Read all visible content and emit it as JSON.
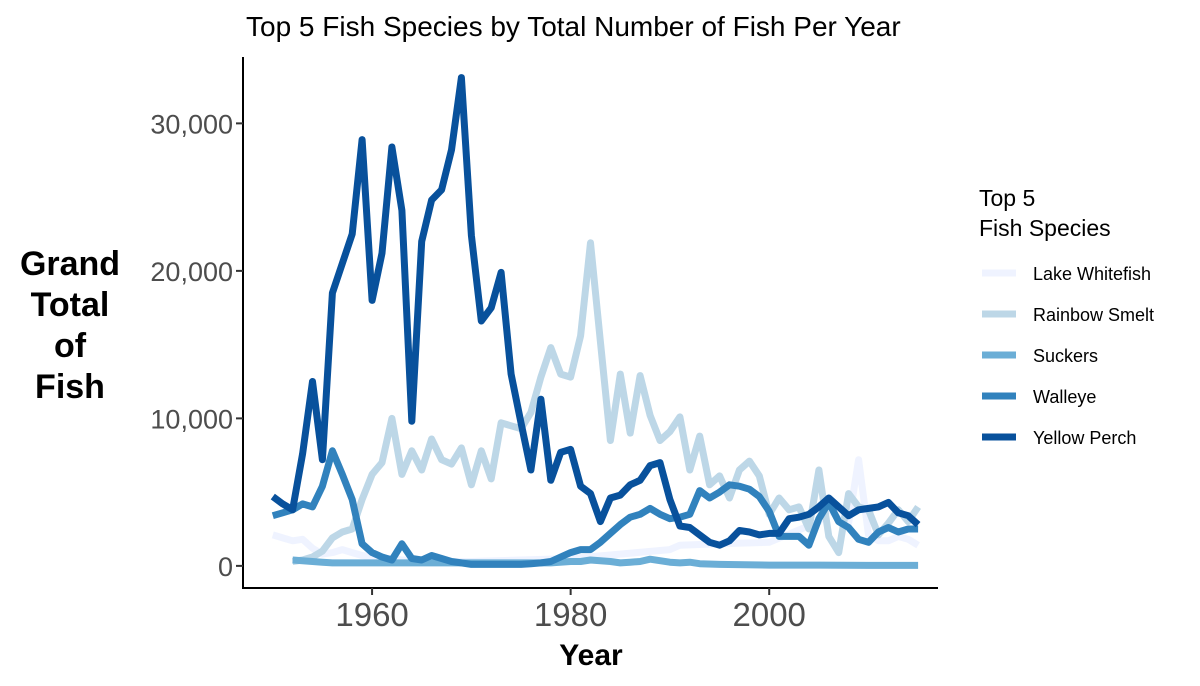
{
  "chart_data": {
    "type": "line",
    "title": "Top 5 Fish Species by Total Number of Fish Per Year",
    "xlabel": "Year",
    "ylabel_lines": [
      "Grand",
      "Total",
      "of",
      "Fish"
    ],
    "xlim": [
      1947,
      2017
    ],
    "ylim": [
      -1500,
      34500
    ],
    "xticks": [
      1960,
      1980,
      2000
    ],
    "xtick_labels": [
      "1960",
      "1980",
      "2000"
    ],
    "yticks": [
      0,
      10000,
      20000,
      30000
    ],
    "ytick_labels": [
      "0",
      "10,000",
      "20,000",
      "30,000"
    ],
    "grid": false,
    "legend": {
      "title_lines": [
        "Top 5",
        "Fish Species"
      ],
      "position": "right"
    },
    "series": [
      {
        "name": "Lake Whitefish",
        "color": "#eff3ff",
        "points": [
          [
            1950,
            2100
          ],
          [
            1951,
            1900
          ],
          [
            1952,
            1700
          ],
          [
            1953,
            1800
          ],
          [
            1954,
            1200
          ],
          [
            1955,
            800
          ],
          [
            1956,
            900
          ],
          [
            1957,
            1100
          ],
          [
            1958,
            900
          ],
          [
            1959,
            700
          ],
          [
            1960,
            600
          ],
          [
            1961,
            500
          ],
          [
            1962,
            500
          ],
          [
            1963,
            400
          ],
          [
            1964,
            400
          ],
          [
            1965,
            300
          ],
          [
            1966,
            300
          ],
          [
            1967,
            300
          ],
          [
            1968,
            300
          ],
          [
            1969,
            300
          ],
          [
            1970,
            300
          ],
          [
            1975,
            400
          ],
          [
            1980,
            500
          ],
          [
            1985,
            800
          ],
          [
            1990,
            1100
          ],
          [
            1991,
            1400
          ],
          [
            1995,
            1500
          ],
          [
            2000,
            1600
          ],
          [
            2005,
            3000
          ],
          [
            2006,
            3900
          ],
          [
            2007,
            3200
          ],
          [
            2008,
            2900
          ],
          [
            2009,
            7200
          ],
          [
            2010,
            2100
          ],
          [
            2011,
            1700
          ],
          [
            2012,
            1700
          ],
          [
            2013,
            2000
          ],
          [
            2014,
            1800
          ],
          [
            2015,
            1400
          ]
        ]
      },
      {
        "name": "Rainbow Smelt",
        "color": "#bdd7e7",
        "points": [
          [
            1952,
            300
          ],
          [
            1953,
            400
          ],
          [
            1954,
            600
          ],
          [
            1955,
            1000
          ],
          [
            1956,
            1900
          ],
          [
            1957,
            2300
          ],
          [
            1958,
            2500
          ],
          [
            1959,
            4500
          ],
          [
            1960,
            6200
          ],
          [
            1961,
            7000
          ],
          [
            1962,
            10000
          ],
          [
            1963,
            6200
          ],
          [
            1964,
            7800
          ],
          [
            1965,
            6500
          ],
          [
            1966,
            8600
          ],
          [
            1967,
            7200
          ],
          [
            1968,
            6900
          ],
          [
            1969,
            8000
          ],
          [
            1970,
            5500
          ],
          [
            1971,
            7800
          ],
          [
            1972,
            5900
          ],
          [
            1973,
            9700
          ],
          [
            1974,
            9500
          ],
          [
            1975,
            9300
          ],
          [
            1976,
            10400
          ],
          [
            1977,
            12800
          ],
          [
            1978,
            14800
          ],
          [
            1979,
            13000
          ],
          [
            1980,
            12800
          ],
          [
            1981,
            15600
          ],
          [
            1982,
            21900
          ],
          [
            1983,
            15200
          ],
          [
            1984,
            8500
          ],
          [
            1985,
            13000
          ],
          [
            1986,
            9000
          ],
          [
            1987,
            12900
          ],
          [
            1988,
            10200
          ],
          [
            1989,
            8500
          ],
          [
            1990,
            9100
          ],
          [
            1991,
            10100
          ],
          [
            1992,
            6500
          ],
          [
            1993,
            8800
          ],
          [
            1994,
            5500
          ],
          [
            1995,
            6100
          ],
          [
            1996,
            4600
          ],
          [
            1997,
            6500
          ],
          [
            1998,
            7100
          ],
          [
            1999,
            6100
          ],
          [
            2000,
            3500
          ],
          [
            2001,
            4600
          ],
          [
            2002,
            3800
          ],
          [
            2003,
            4000
          ],
          [
            2004,
            2500
          ],
          [
            2005,
            6500
          ],
          [
            2006,
            2000
          ],
          [
            2007,
            900
          ],
          [
            2008,
            4900
          ],
          [
            2009,
            4000
          ],
          [
            2010,
            3800
          ],
          [
            2011,
            2100
          ],
          [
            2012,
            2900
          ],
          [
            2013,
            3800
          ],
          [
            2014,
            3000
          ],
          [
            2015,
            4000
          ]
        ]
      },
      {
        "name": "Suckers",
        "color": "#6baed6",
        "points": [
          [
            1952,
            400
          ],
          [
            1953,
            350
          ],
          [
            1954,
            300
          ],
          [
            1955,
            250
          ],
          [
            1956,
            200
          ],
          [
            1957,
            200
          ],
          [
            1958,
            200
          ],
          [
            1959,
            200
          ],
          [
            1960,
            200
          ],
          [
            1962,
            200
          ],
          [
            1965,
            200
          ],
          [
            1970,
            200
          ],
          [
            1975,
            200
          ],
          [
            1978,
            200
          ],
          [
            1980,
            300
          ],
          [
            1981,
            300
          ],
          [
            1982,
            400
          ],
          [
            1983,
            350
          ],
          [
            1984,
            300
          ],
          [
            1985,
            200
          ],
          [
            1986,
            250
          ],
          [
            1987,
            300
          ],
          [
            1988,
            450
          ],
          [
            1989,
            350
          ],
          [
            1990,
            250
          ],
          [
            1991,
            200
          ],
          [
            1992,
            250
          ],
          [
            1993,
            150
          ],
          [
            1995,
            100
          ],
          [
            2000,
            50
          ],
          [
            2005,
            50
          ],
          [
            2010,
            30
          ],
          [
            2015,
            30
          ]
        ]
      },
      {
        "name": "Walleye",
        "color": "#3182bd",
        "points": [
          [
            1950,
            3400
          ],
          [
            1951,
            3600
          ],
          [
            1952,
            3800
          ],
          [
            1953,
            4200
          ],
          [
            1954,
            4000
          ],
          [
            1955,
            5400
          ],
          [
            1956,
            7800
          ],
          [
            1957,
            6200
          ],
          [
            1958,
            4500
          ],
          [
            1959,
            1500
          ],
          [
            1960,
            900
          ],
          [
            1961,
            600
          ],
          [
            1962,
            400
          ],
          [
            1963,
            1500
          ],
          [
            1964,
            500
          ],
          [
            1965,
            400
          ],
          [
            1966,
            700
          ],
          [
            1967,
            500
          ],
          [
            1968,
            300
          ],
          [
            1969,
            200
          ],
          [
            1970,
            100
          ],
          [
            1971,
            100
          ],
          [
            1972,
            100
          ],
          [
            1973,
            100
          ],
          [
            1974,
            100
          ],
          [
            1975,
            100
          ],
          [
            1976,
            150
          ],
          [
            1977,
            200
          ],
          [
            1978,
            300
          ],
          [
            1979,
            600
          ],
          [
            1980,
            900
          ],
          [
            1981,
            1100
          ],
          [
            1982,
            1100
          ],
          [
            1983,
            1600
          ],
          [
            1984,
            2200
          ],
          [
            1985,
            2800
          ],
          [
            1986,
            3300
          ],
          [
            1987,
            3500
          ],
          [
            1988,
            3900
          ],
          [
            1989,
            3500
          ],
          [
            1990,
            3200
          ],
          [
            1991,
            3300
          ],
          [
            1992,
            3500
          ],
          [
            1993,
            5100
          ],
          [
            1994,
            4600
          ],
          [
            1995,
            5000
          ],
          [
            1996,
            5500
          ],
          [
            1997,
            5400
          ],
          [
            1998,
            5200
          ],
          [
            1999,
            4700
          ],
          [
            2000,
            3700
          ],
          [
            2001,
            2000
          ],
          [
            2002,
            2000
          ],
          [
            2003,
            2000
          ],
          [
            2004,
            1400
          ],
          [
            2005,
            3200
          ],
          [
            2006,
            4300
          ],
          [
            2007,
            3000
          ],
          [
            2008,
            2600
          ],
          [
            2009,
            1800
          ],
          [
            2010,
            1600
          ],
          [
            2011,
            2300
          ],
          [
            2012,
            2600
          ],
          [
            2013,
            2300
          ],
          [
            2014,
            2500
          ],
          [
            2015,
            2500
          ]
        ]
      },
      {
        "name": "Yellow Perch",
        "color": "#08519c",
        "points": [
          [
            1950,
            4700
          ],
          [
            1951,
            4200
          ],
          [
            1952,
            3800
          ],
          [
            1953,
            7600
          ],
          [
            1954,
            12500
          ],
          [
            1955,
            7200
          ],
          [
            1956,
            18500
          ],
          [
            1957,
            20500
          ],
          [
            1958,
            22500
          ],
          [
            1959,
            28900
          ],
          [
            1960,
            18000
          ],
          [
            1961,
            21200
          ],
          [
            1962,
            28400
          ],
          [
            1963,
            24100
          ],
          [
            1964,
            9800
          ],
          [
            1965,
            22000
          ],
          [
            1966,
            24800
          ],
          [
            1967,
            25500
          ],
          [
            1968,
            28200
          ],
          [
            1969,
            33100
          ],
          [
            1970,
            22400
          ],
          [
            1971,
            16600
          ],
          [
            1972,
            17500
          ],
          [
            1973,
            19900
          ],
          [
            1974,
            13000
          ],
          [
            1975,
            9700
          ],
          [
            1976,
            6500
          ],
          [
            1977,
            11300
          ],
          [
            1978,
            5800
          ],
          [
            1979,
            7700
          ],
          [
            1980,
            7900
          ],
          [
            1981,
            5400
          ],
          [
            1982,
            4900
          ],
          [
            1983,
            3000
          ],
          [
            1984,
            4600
          ],
          [
            1985,
            4800
          ],
          [
            1986,
            5500
          ],
          [
            1987,
            5800
          ],
          [
            1988,
            6800
          ],
          [
            1989,
            7000
          ],
          [
            1990,
            4500
          ],
          [
            1991,
            2700
          ],
          [
            1992,
            2600
          ],
          [
            1993,
            2100
          ],
          [
            1994,
            1600
          ],
          [
            1995,
            1400
          ],
          [
            1996,
            1700
          ],
          [
            1997,
            2400
          ],
          [
            1998,
            2300
          ],
          [
            1999,
            2100
          ],
          [
            2000,
            2200
          ],
          [
            2001,
            2200
          ],
          [
            2002,
            3200
          ],
          [
            2003,
            3300
          ],
          [
            2004,
            3500
          ],
          [
            2005,
            4000
          ],
          [
            2006,
            4600
          ],
          [
            2007,
            4000
          ],
          [
            2008,
            3400
          ],
          [
            2009,
            3800
          ],
          [
            2010,
            3900
          ],
          [
            2011,
            4000
          ],
          [
            2012,
            4300
          ],
          [
            2013,
            3600
          ],
          [
            2014,
            3400
          ],
          [
            2015,
            2800
          ]
        ]
      }
    ]
  }
}
